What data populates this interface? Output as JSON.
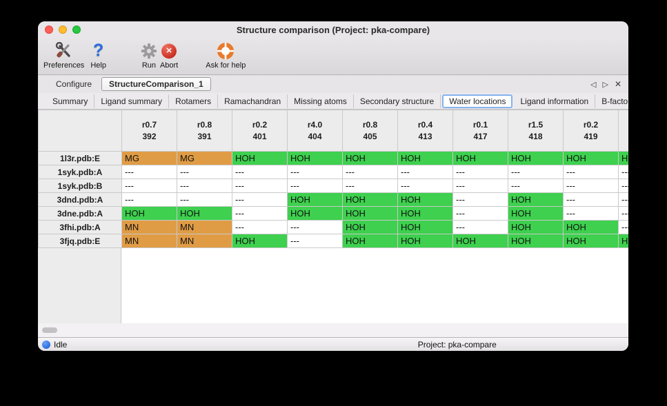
{
  "window": {
    "title": "Structure comparison (Project: pka-compare)"
  },
  "toolbar": {
    "items": [
      {
        "label": "Preferences",
        "icon": "tools-icon"
      },
      {
        "label": "Help",
        "icon": "question-icon"
      },
      {
        "label": "Run",
        "icon": "gear-icon"
      },
      {
        "label": "Abort",
        "icon": "abort-icon"
      },
      {
        "label": "Ask for help",
        "icon": "lifebuoy-icon"
      }
    ]
  },
  "tabs": {
    "items": [
      {
        "label": "Configure"
      },
      {
        "label": "StructureComparison_1"
      }
    ],
    "active_index": 1
  },
  "tab_controls": {
    "prev": "◁",
    "next": "▷",
    "close": "✕"
  },
  "subtabs": {
    "items": [
      "Summary",
      "Ligand summary",
      "Rotamers",
      "Ramachandran",
      "Missing atoms",
      "Secondary structure",
      "Water locations",
      "Ligand information",
      "B-factors"
    ],
    "active": "Water locations"
  },
  "table": {
    "corner": "",
    "columns": [
      [
        "r0.7",
        "392"
      ],
      [
        "r0.8",
        "391"
      ],
      [
        "r0.2",
        "401"
      ],
      [
        "r4.0",
        "404"
      ],
      [
        "r0.8",
        "405"
      ],
      [
        "r0.4",
        "413"
      ],
      [
        "r0.1",
        "417"
      ],
      [
        "r1.5",
        "418"
      ],
      [
        "r0.2",
        "419"
      ],
      [
        "",
        ""
      ]
    ],
    "rows": [
      {
        "label": "1l3r.pdb:E",
        "cells": [
          [
            "MG",
            "orange"
          ],
          [
            "MG",
            "orange"
          ],
          [
            "HOH",
            "green"
          ],
          [
            "HOH",
            "green"
          ],
          [
            "HOH",
            "green"
          ],
          [
            "HOH",
            "green"
          ],
          [
            "HOH",
            "green"
          ],
          [
            "HOH",
            "green"
          ],
          [
            "HOH",
            "green"
          ],
          [
            "HOH",
            "green"
          ]
        ]
      },
      {
        "label": "1syk.pdb:A",
        "cells": [
          [
            "---",
            "none"
          ],
          [
            "---",
            "none"
          ],
          [
            "---",
            "none"
          ],
          [
            "---",
            "none"
          ],
          [
            "---",
            "none"
          ],
          [
            "---",
            "none"
          ],
          [
            "---",
            "none"
          ],
          [
            "---",
            "none"
          ],
          [
            "---",
            "none"
          ],
          [
            "---",
            "none"
          ]
        ]
      },
      {
        "label": "1syk.pdb:B",
        "cells": [
          [
            "---",
            "none"
          ],
          [
            "---",
            "none"
          ],
          [
            "---",
            "none"
          ],
          [
            "---",
            "none"
          ],
          [
            "---",
            "none"
          ],
          [
            "---",
            "none"
          ],
          [
            "---",
            "none"
          ],
          [
            "---",
            "none"
          ],
          [
            "---",
            "none"
          ],
          [
            "---",
            "none"
          ]
        ]
      },
      {
        "label": "3dnd.pdb:A",
        "cells": [
          [
            "---",
            "none"
          ],
          [
            "---",
            "none"
          ],
          [
            "---",
            "none"
          ],
          [
            "HOH",
            "green"
          ],
          [
            "HOH",
            "green"
          ],
          [
            "HOH",
            "green"
          ],
          [
            "---",
            "none"
          ],
          [
            "HOH",
            "green"
          ],
          [
            "---",
            "none"
          ],
          [
            "---",
            "none"
          ]
        ]
      },
      {
        "label": "3dne.pdb:A",
        "cells": [
          [
            "HOH",
            "green"
          ],
          [
            "HOH",
            "green"
          ],
          [
            "---",
            "none"
          ],
          [
            "HOH",
            "green"
          ],
          [
            "HOH",
            "green"
          ],
          [
            "HOH",
            "green"
          ],
          [
            "---",
            "none"
          ],
          [
            "HOH",
            "green"
          ],
          [
            "---",
            "none"
          ],
          [
            "---",
            "none"
          ]
        ]
      },
      {
        "label": "3fhi.pdb:A",
        "cells": [
          [
            "MN",
            "orange"
          ],
          [
            "MN",
            "orange"
          ],
          [
            "---",
            "none"
          ],
          [
            "---",
            "none"
          ],
          [
            "HOH",
            "green"
          ],
          [
            "HOH",
            "green"
          ],
          [
            "---",
            "none"
          ],
          [
            "HOH",
            "green"
          ],
          [
            "HOH",
            "green"
          ],
          [
            "---",
            "none"
          ]
        ]
      },
      {
        "label": "3fjq.pdb:E",
        "cells": [
          [
            "MN",
            "orange"
          ],
          [
            "MN",
            "orange"
          ],
          [
            "HOH",
            "green"
          ],
          [
            "---",
            "none"
          ],
          [
            "HOH",
            "green"
          ],
          [
            "HOH",
            "green"
          ],
          [
            "HOH",
            "green"
          ],
          [
            "HOH",
            "green"
          ],
          [
            "HOH",
            "green"
          ],
          [
            "HOH",
            "green"
          ]
        ]
      }
    ]
  },
  "statusbar": {
    "status": "Idle",
    "project": "Project: pka-compare"
  },
  "colors": {
    "green": "#3ed04e",
    "orange": "#e09c45"
  }
}
